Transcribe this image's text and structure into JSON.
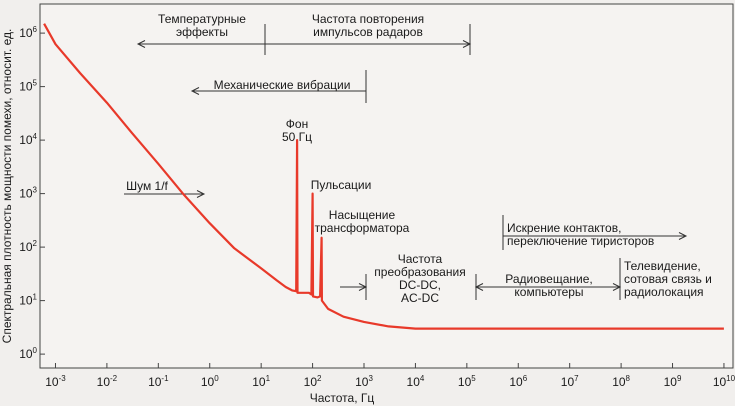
{
  "chart_data": {
    "type": "line",
    "xlabel": "Частота, Гц",
    "ylabel": "Спектральная плотность мощности помехи, относит. ед.",
    "x_scale": "log",
    "y_scale": "log",
    "xlim": [
      0.0005,
      15000000000
    ],
    "ylim": [
      0.55,
      3500000
    ],
    "x_ticks": [
      {
        "base": "10",
        "exp": "-3",
        "value": 0.001
      },
      {
        "base": "10",
        "exp": "-2",
        "value": 0.01
      },
      {
        "base": "10",
        "exp": "-1",
        "value": 0.1
      },
      {
        "base": "10",
        "exp": "0",
        "value": 1
      },
      {
        "base": "10",
        "exp": "1",
        "value": 10
      },
      {
        "base": "10",
        "exp": "2",
        "value": 100
      },
      {
        "base": "10",
        "exp": "3",
        "value": 1000
      },
      {
        "base": "10",
        "exp": "4",
        "value": 10000
      },
      {
        "base": "10",
        "exp": "5",
        "value": 100000
      },
      {
        "base": "10",
        "exp": "6",
        "value": 1000000
      },
      {
        "base": "10",
        "exp": "7",
        "value": 10000000
      },
      {
        "base": "10",
        "exp": "8",
        "value": 100000000
      },
      {
        "base": "10",
        "exp": "9",
        "value": 1000000000
      },
      {
        "base": "10",
        "exp": "10",
        "value": 10000000000
      }
    ],
    "y_ticks": [
      {
        "base": "10",
        "exp": "0",
        "value": 1
      },
      {
        "base": "10",
        "exp": "1",
        "value": 10
      },
      {
        "base": "10",
        "exp": "2",
        "value": 100
      },
      {
        "base": "10",
        "exp": "3",
        "value": 1000
      },
      {
        "base": "10",
        "exp": "4",
        "value": 10000
      },
      {
        "base": "10",
        "exp": "5",
        "value": 100000
      },
      {
        "base": "10",
        "exp": "6",
        "value": 1000000
      }
    ],
    "series": [
      {
        "color": "#e8392a",
        "points": [
          [
            0.0006,
            1500000
          ],
          [
            0.001,
            620000
          ],
          [
            0.003,
            180000
          ],
          [
            0.01,
            50000
          ],
          [
            0.03,
            14000
          ],
          [
            0.1,
            3600
          ],
          [
            0.3,
            1000
          ],
          [
            1,
            280
          ],
          [
            3,
            95
          ],
          [
            10,
            40
          ],
          [
            20,
            24
          ],
          [
            30,
            18
          ],
          [
            40,
            15.5
          ],
          [
            48,
            15
          ],
          [
            50,
            10000
          ],
          [
            51,
            14
          ],
          [
            65,
            14
          ],
          [
            85,
            14
          ],
          [
            95,
            13
          ],
          [
            100,
            1000
          ],
          [
            102,
            12
          ],
          [
            125,
            11.5
          ],
          [
            140,
            12
          ],
          [
            150,
            150
          ],
          [
            152,
            10
          ],
          [
            200,
            7
          ],
          [
            400,
            5
          ],
          [
            1000,
            4
          ],
          [
            3000,
            3.3
          ],
          [
            10000,
            3
          ],
          [
            100000,
            3
          ],
          [
            1000000,
            3
          ],
          [
            10000000,
            3
          ],
          [
            100000000,
            3
          ],
          [
            1000000000,
            3
          ],
          [
            10000000000,
            3
          ]
        ]
      }
    ],
    "annotations": [
      {
        "id": "temp-effects",
        "lines": [
          "Температурные",
          "эффекты"
        ]
      },
      {
        "id": "radar",
        "lines": [
          "Частота повторения",
          "импульсов радаров"
        ]
      },
      {
        "id": "mech-vib",
        "lines": [
          "Механические вибрации"
        ]
      },
      {
        "id": "fon",
        "lines": [
          "Фон",
          "50 Гц"
        ]
      },
      {
        "id": "pulsations",
        "lines": [
          "Пульсации"
        ]
      },
      {
        "id": "saturation",
        "lines": [
          "Насыщение",
          "трансформатора"
        ]
      },
      {
        "id": "noise",
        "lines": [
          "Шум 1/f"
        ]
      },
      {
        "id": "dcdc",
        "lines": [
          "Частота",
          "преобразования",
          "DC-DC,",
          "AC-DC"
        ]
      },
      {
        "id": "radio",
        "lines": [
          "Радиовещание,",
          "компьютеры"
        ]
      },
      {
        "id": "sparking",
        "lines": [
          "Искрение контактов,",
          "переключение тиристоров"
        ]
      },
      {
        "id": "tv",
        "lines": [
          "Телевидение,",
          "сотовая связь и",
          "радиолокация"
        ]
      }
    ]
  }
}
